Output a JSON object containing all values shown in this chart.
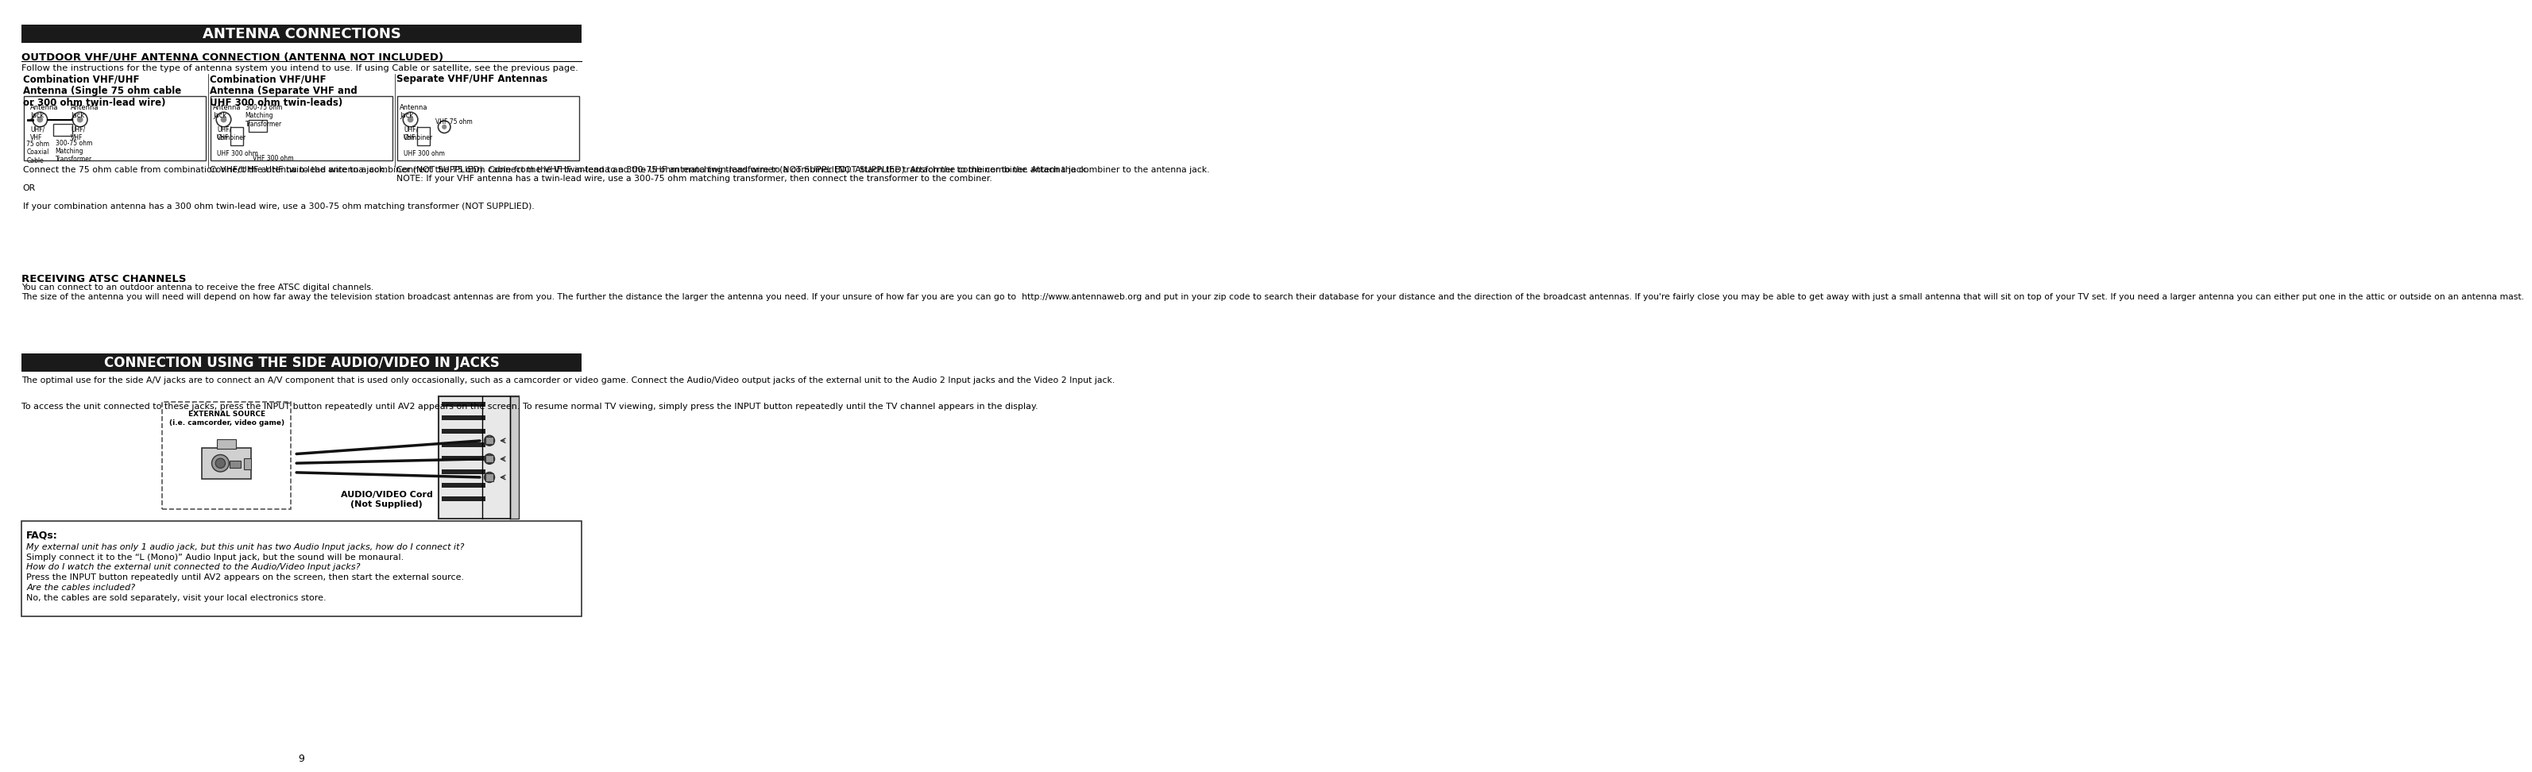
{
  "page_bg": "#ffffff",
  "title1": "ANTENNA CONNECTIONS",
  "title1_bg": "#1a1a1a",
  "title1_color": "#ffffff",
  "section1_heading": "OUTDOOR VHF/UHF ANTENNA CONNECTION (ANTENNA NOT INCLUDED)",
  "section1_subtext": "Follow the instructions for the type of antenna system you intend to use. If using Cable or satellite, see the previous page.",
  "col1_heading": "Combination VHF/UHF\nAntenna (Single 75 ohm cable\nor 300 ohm twin-lead wire)",
  "col2_heading": "Combination VHF/UHF\nAntenna (Separate VHF and\nUHF 300 ohm twin-leads)",
  "col3_heading": "Separate VHF/UHF Antennas",
  "col1_text": "Connect the 75 ohm cable from combination VHF/UHF antenna to the antenna jack.\n\nOR\n\nIf your combination antenna has a 300 ohm twin-lead wire, use a 300-75 ohm matching transformer (NOT SUPPLIED).",
  "col2_text": "Connect the UHF twin-lead wire to a combiner (NOT SUPPLIED). Connect the VHF twin-lead to a 300-75 ohm matching transformer (NOT SUPPLIED). Attach the transformer to the combiner. Attach the combiner to the antenna jack.",
  "col3_text": "Connect the 75 ohm cable from the VHF antenna and the UHF antenna twin-lead wire to a combiner (NOT SUPPLIED). Attach the combiner to the antenna jack.\nNOTE: If your VHF antenna has a twin-lead wire, use a 300-75 ohm matching transformer, then connect the transformer to the combiner.",
  "receiving_heading": "RECEIVING ATSC CHANNELS",
  "receiving_text": "You can connect to an outdoor antenna to receive the free ATSC digital channels.\nThe size of the antenna you will need will depend on how far away the television station broadcast antennas are from you. The further the distance the larger the antenna you need. If your unsure of how far you are you can go to  http://www.antennaweb.org and put in your zip code to search their database for your distance and the direction of the broadcast antennas. If you're fairly close you may be able to get away with just a small antenna that will sit on top of your TV set. If you need a larger antenna you can either put one in the attic or outside on an antenna mast.",
  "title2": "CONNECTION USING THE SIDE AUDIO/VIDEO IN JACKS",
  "title2_bg": "#1a1a1a",
  "title2_color": "#ffffff",
  "av_intro_text": "The optimal use for the side A/V jacks are to connect an A/V component that is used only occasionally, such as a camcorder or video game. Connect the Audio/Video output jacks of the external unit to the Audio 2 Input jacks and the Video 2 Input jack.",
  "av_left_text": "To access the unit connected to these jacks, press the INPUT button repeatedly until AV2 appears on the screen. To resume normal TV viewing, simply press the INPUT button repeatedly until the TV channel appears in the display.",
  "av_cord_label": "AUDIO/VIDEO Cord\n(Not Supplied)",
  "external_source_label": "EXTERNAL SOURCE\n(i.e. camcorder, video game)",
  "faq_heading": "FAQs:",
  "faq_q1": "My external unit has only 1 audio jack, but this unit has two Audio Input jacks, how do I connect it?",
  "faq_a1": "Simply connect it to the “L (Mono)” Audio Input jack, but the sound will be monaural.",
  "faq_q2": "How do I watch the external unit connected to the Audio/Video Input jacks?",
  "faq_a2": "Press the INPUT button repeatedly until AV2 appears on the screen, then start the external source.",
  "faq_q3": "Are the cables included?",
  "faq_a3": "No, the cables are sold separately, visit your local electronics store.",
  "page_number": "9"
}
